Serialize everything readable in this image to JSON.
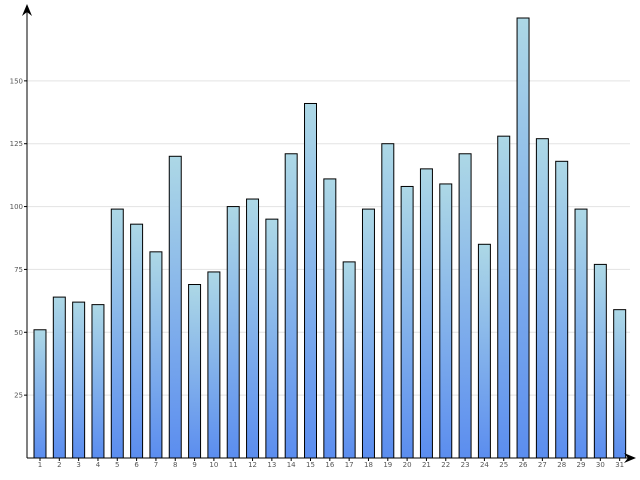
{
  "chart_data": {
    "type": "bar",
    "title": "",
    "xlabel": "",
    "ylabel": "",
    "categories": [
      "1",
      "2",
      "3",
      "4",
      "5",
      "6",
      "7",
      "8",
      "9",
      "10",
      "11",
      "12",
      "13",
      "14",
      "15",
      "16",
      "17",
      "18",
      "19",
      "20",
      "21",
      "22",
      "23",
      "24",
      "25",
      "26",
      "27",
      "28",
      "29",
      "30",
      "31"
    ],
    "values": [
      51,
      64,
      62,
      61,
      99,
      93,
      82,
      120,
      69,
      74,
      100,
      103,
      95,
      121,
      141,
      111,
      78,
      99,
      125,
      108,
      115,
      109,
      121,
      85,
      128,
      175,
      127,
      118,
      99,
      77,
      59
    ],
    "ylim": [
      0,
      175
    ],
    "yticks": [
      25,
      50,
      75,
      100,
      125,
      150
    ],
    "ytick_labels": [
      "25",
      "50",
      "75",
      "100",
      "125",
      "150"
    ],
    "grid": true,
    "colors": {
      "bar_top": "#add8e6",
      "bar_bottom": "#5b8def",
      "bar_border": "#000000",
      "grid": "#e3e3e3"
    }
  }
}
